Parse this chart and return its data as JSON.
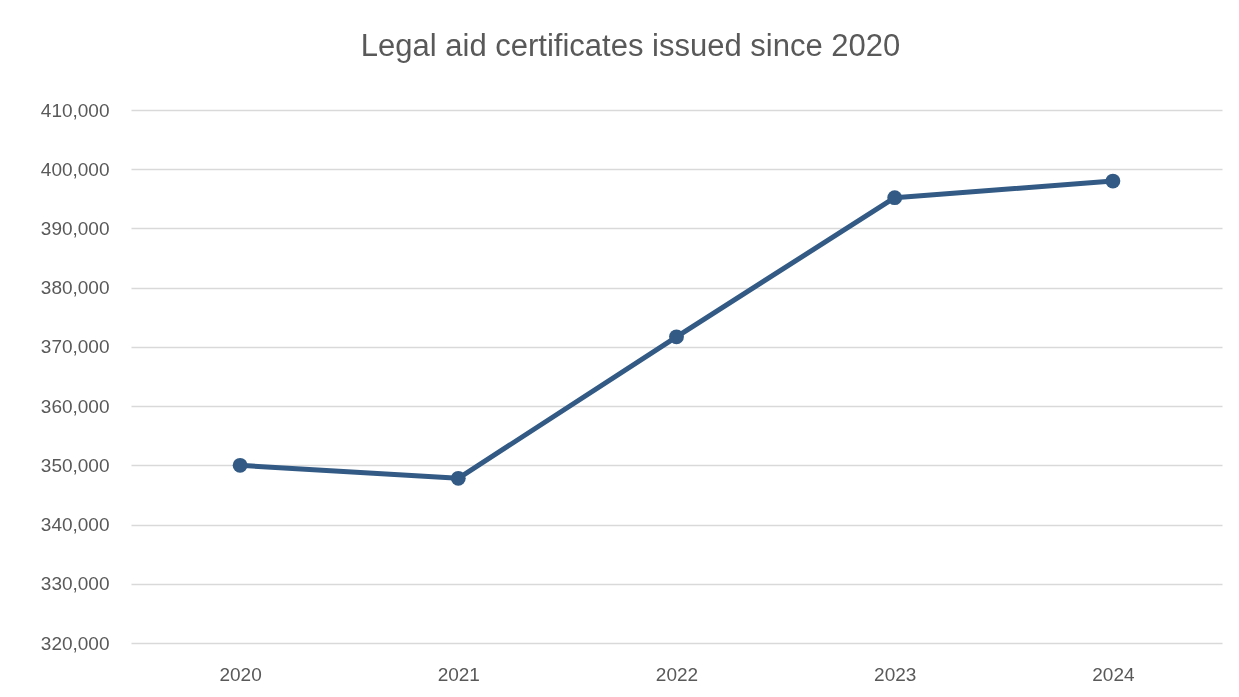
{
  "chart_data": {
    "type": "line",
    "title": "Legal aid certificates issued since 2020",
    "categories": [
      "2020",
      "2021",
      "2022",
      "2023",
      "2024"
    ],
    "series": [
      {
        "color": "#325a84",
        "values": [
          350000,
          347800,
          371700,
          395200,
          398000
        ]
      }
    ],
    "ylim": [
      320000,
      410000
    ],
    "yticks": [
      {
        "value": 320000,
        "label": "320,000"
      },
      {
        "value": 330000,
        "label": "330,000"
      },
      {
        "value": 340000,
        "label": "340,000"
      },
      {
        "value": 350000,
        "label": "350,000"
      },
      {
        "value": 360000,
        "label": "360,000"
      },
      {
        "value": 370000,
        "label": "370,000"
      },
      {
        "value": 380000,
        "label": "380,000"
      },
      {
        "value": 390000,
        "label": "390,000"
      },
      {
        "value": 400000,
        "label": "400,000"
      },
      {
        "value": 410000,
        "label": "410,000"
      }
    ],
    "grid": "y",
    "marker": "circle",
    "line_style": "solid"
  }
}
